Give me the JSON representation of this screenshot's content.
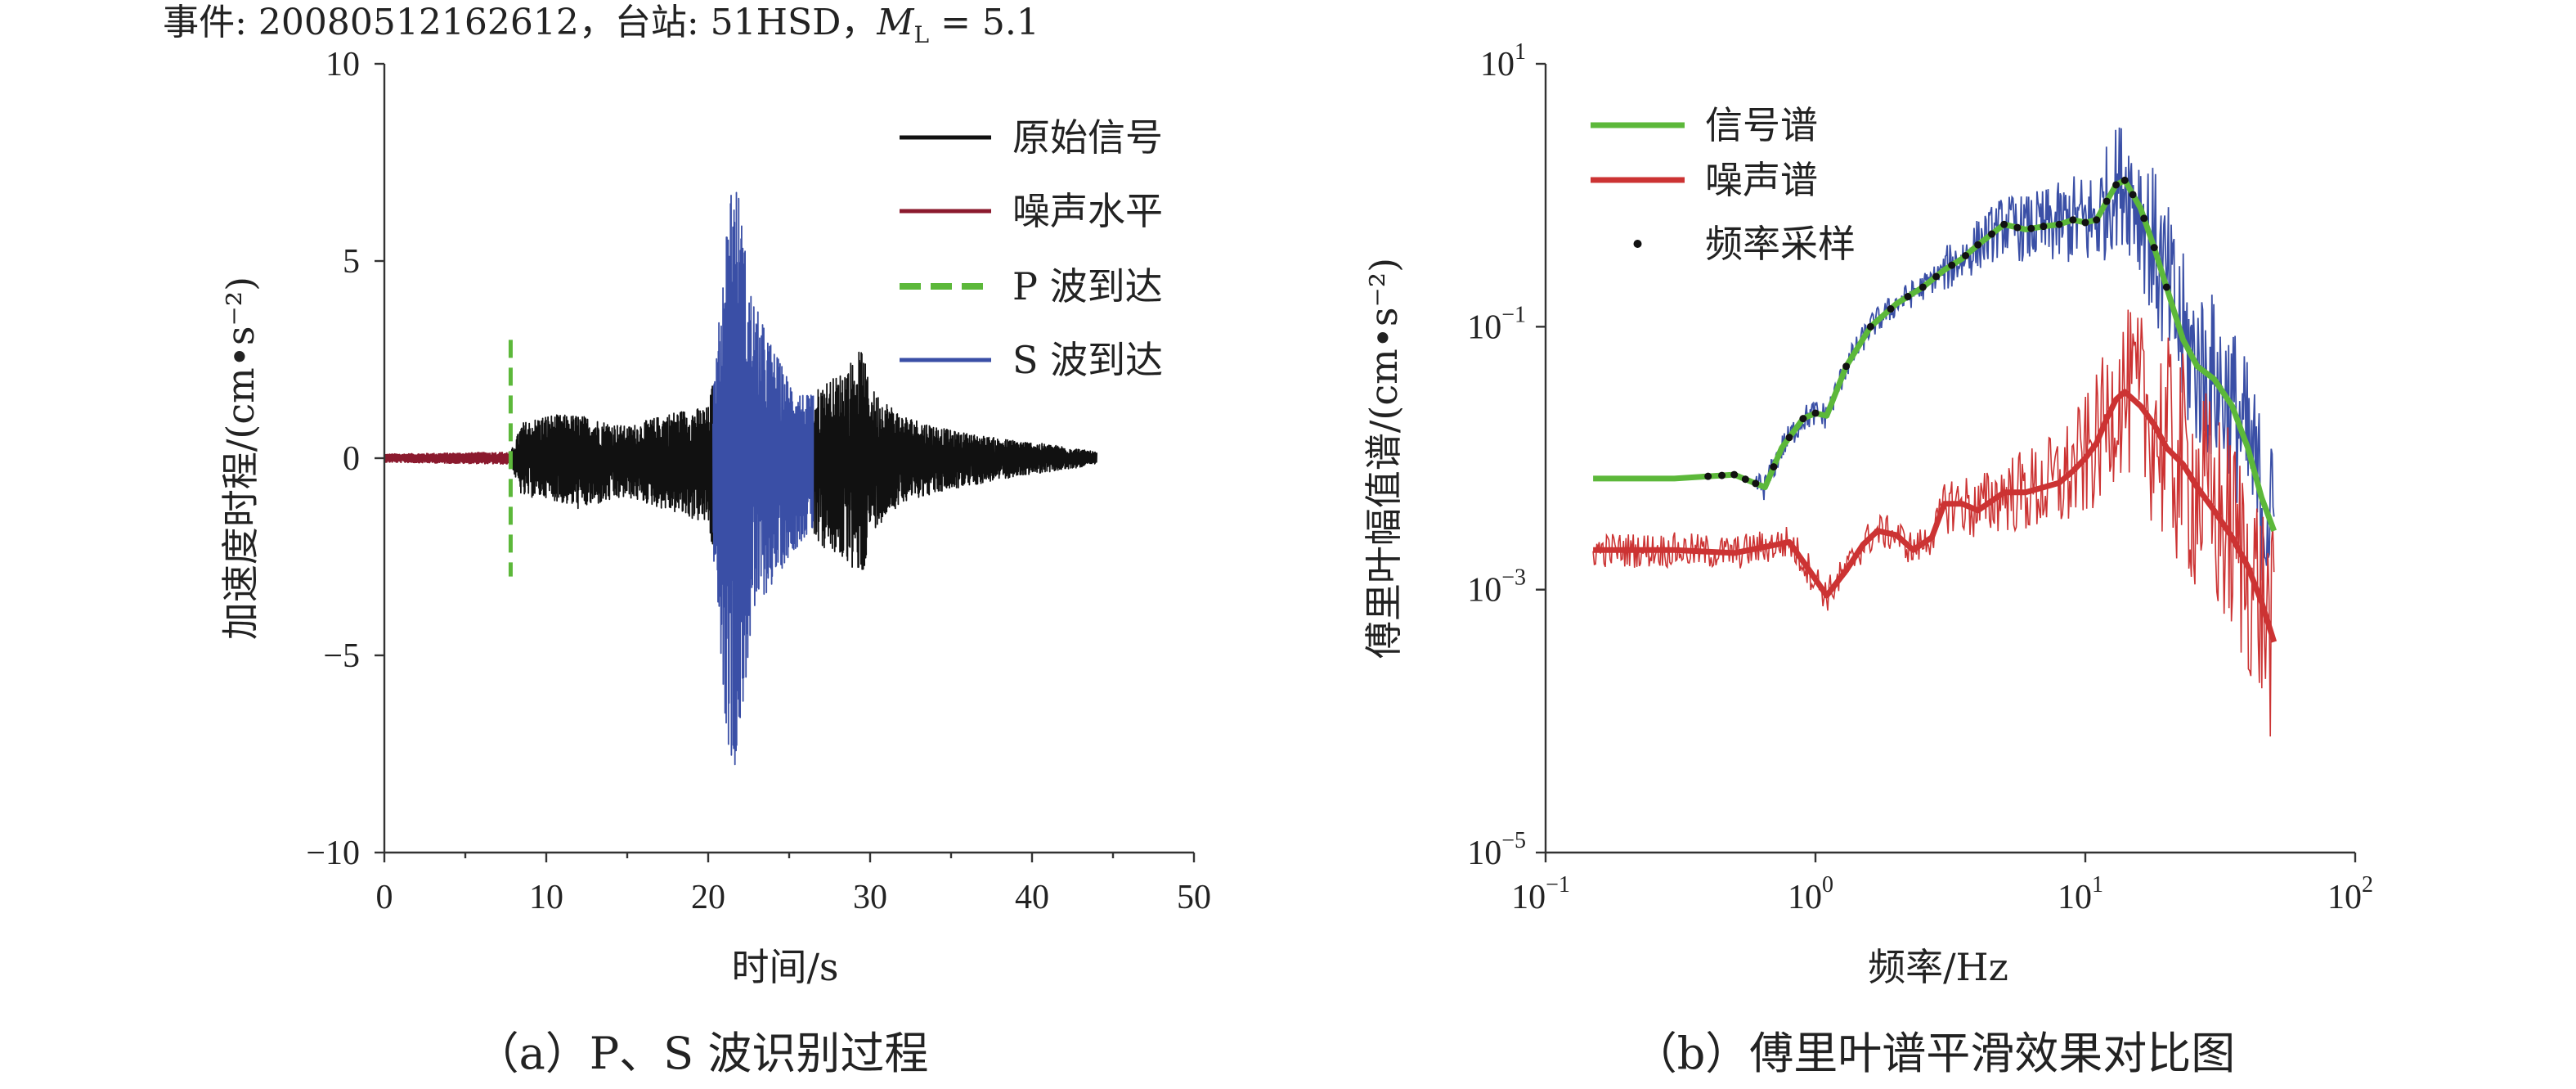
{
  "chart_data": [
    {
      "type": "line",
      "title": "事件: 20080512162612，台站: 51HSD，M_L = 5.1",
      "title_parts": {
        "prefix": "事件: 20080512162612，台站: 51HSD，",
        "mag_symbol": "M",
        "mag_sub": "L",
        "mag_value": " = 5.1"
      },
      "xlabel": "时间/s",
      "ylabel": "加速度时程/(cm•s⁻²)",
      "xlim": [
        0,
        50
      ],
      "ylim": [
        -10,
        10
      ],
      "xticks": [
        "0",
        "10",
        "20",
        "30",
        "40",
        "50"
      ],
      "yticks": [
        "−10",
        "−5",
        "0",
        "5",
        "10"
      ],
      "legend_position": "top-right",
      "series": [
        {
          "name": "原始信号",
          "color": "#111111",
          "segments": [
            [
              7.8,
              20.3
            ],
            [
              26.5,
              44.0
            ]
          ]
        },
        {
          "name": "噪声水平",
          "color": "#8b1a2e",
          "segments": [
            [
              0,
              7.8
            ]
          ]
        },
        {
          "name": "P 波到达",
          "color": "#5cb83a",
          "style": "dashed",
          "x": 7.8,
          "y_range": [
            -3,
            3
          ]
        },
        {
          "name": "S 波到达",
          "color": "#3a4fa6",
          "segments": [
            [
              20.3,
              26.5
            ]
          ]
        }
      ],
      "envelope": {
        "times": [
          0,
          7.8,
          8.5,
          10,
          12,
          15,
          18,
          20,
          20.5,
          21,
          21.5,
          22,
          22.5,
          23,
          24,
          25,
          26,
          26.5,
          27,
          28,
          29.5,
          30,
          32,
          35,
          38,
          40,
          42,
          44
        ],
        "upper": [
          0.1,
          0.15,
          0.9,
          1.1,
          1.1,
          0.8,
          1.2,
          1.3,
          2.5,
          5.5,
          7.6,
          6.5,
          4.5,
          3.8,
          2.8,
          2.0,
          1.6,
          1.6,
          1.9,
          2.1,
          2.8,
          1.8,
          1.1,
          0.7,
          0.5,
          0.4,
          0.3,
          0.15
        ],
        "lower": [
          -0.1,
          -0.15,
          -1.0,
          -1.0,
          -1.3,
          -1.0,
          -1.4,
          -1.7,
          -3.0,
          -6.5,
          -8.1,
          -7.0,
          -5.0,
          -3.8,
          -3.2,
          -2.5,
          -2.0,
          -1.9,
          -2.3,
          -2.5,
          -3.1,
          -1.9,
          -1.1,
          -0.8,
          -0.55,
          -0.4,
          -0.3,
          -0.15
        ]
      },
      "caption": "（a）P、S 波识别过程"
    },
    {
      "type": "line",
      "xscale": "log",
      "yscale": "log",
      "xlabel": "频率/Hz",
      "ylabel": "傅里叶幅值谱/(cm•s⁻²)",
      "xlim": [
        0.1,
        100
      ],
      "ylim": [
        1e-05,
        10
      ],
      "xticks": [
        {
          "base": "10",
          "exp": "−1"
        },
        {
          "base": "10",
          "exp": "0"
        },
        {
          "base": "10",
          "exp": "1"
        },
        {
          "base": "10",
          "exp": "2"
        }
      ],
      "yticks": [
        {
          "base": "10",
          "exp": "−5"
        },
        {
          "base": "10",
          "exp": "−3"
        },
        {
          "base": "10",
          "exp": "−1"
        },
        {
          "base": "10",
          "exp": "1"
        }
      ],
      "legend_position": "top-left",
      "series": [
        {
          "name": "信号谱",
          "color": "#5cb83a",
          "x": [
            0.15,
            0.3,
            0.5,
            0.65,
            0.75,
            0.9,
            1.0,
            1.1,
            1.3,
            1.6,
            2.0,
            2.5,
            3.0,
            3.5,
            4.0,
            5.0,
            6.0,
            7.0,
            8.0,
            9.0,
            10.0,
            11.0,
            12.0,
            13.0,
            14.0,
            16.0,
            18.0,
            20.0,
            23.0,
            26.0,
            30.0,
            35.0,
            40.0,
            45.0,
            50.0
          ],
          "values": [
            0.007,
            0.007,
            0.0075,
            0.006,
            0.012,
            0.02,
            0.022,
            0.021,
            0.05,
            0.1,
            0.15,
            0.2,
            0.27,
            0.33,
            0.42,
            0.6,
            0.55,
            0.58,
            0.6,
            0.65,
            0.62,
            0.65,
            0.9,
            1.2,
            1.3,
            0.8,
            0.4,
            0.2,
            0.08,
            0.05,
            0.04,
            0.025,
            0.012,
            0.005,
            0.0028
          ]
        },
        {
          "name": "噪声谱",
          "color": "#cc3333",
          "x": [
            0.15,
            0.3,
            0.5,
            0.8,
            0.95,
            1.1,
            1.3,
            1.5,
            1.7,
            2.0,
            2.3,
            2.7,
            3.0,
            3.5,
            4.0,
            5.0,
            6.0,
            7.0,
            8.0,
            9.0,
            10.0,
            11.0,
            12.0,
            13.0,
            14.0,
            16.0,
            18.0,
            20.0,
            23.0,
            26.0,
            30.0,
            35.0,
            40.0,
            45.0,
            50.0
          ],
          "values": [
            0.002,
            0.002,
            0.0019,
            0.0023,
            0.0014,
            0.0009,
            0.0014,
            0.0022,
            0.0028,
            0.0026,
            0.002,
            0.0025,
            0.0045,
            0.0045,
            0.004,
            0.0055,
            0.0055,
            0.006,
            0.0065,
            0.008,
            0.01,
            0.013,
            0.02,
            0.028,
            0.032,
            0.025,
            0.018,
            0.012,
            0.009,
            0.006,
            0.004,
            0.0025,
            0.0015,
            0.0008,
            0.0004
          ]
        },
        {
          "name": "频率采样",
          "color": "#111111",
          "style": "points",
          "x": [
            0.4,
            0.45,
            0.5,
            0.55,
            0.6,
            0.7,
            0.8,
            0.9,
            1.0,
            1.3,
            1.6,
            1.9,
            2.2,
            2.5,
            2.8,
            3.2,
            3.6,
            4.0,
            4.5,
            5.0,
            5.6,
            6.3,
            7.0,
            8.0,
            9.0,
            10.0,
            11.0,
            12.0,
            13.0,
            14.0,
            15.0,
            16.5,
            18.0,
            20.0
          ]
        }
      ],
      "caption": "（b）傅里叶谱平滑效果对比图"
    }
  ]
}
